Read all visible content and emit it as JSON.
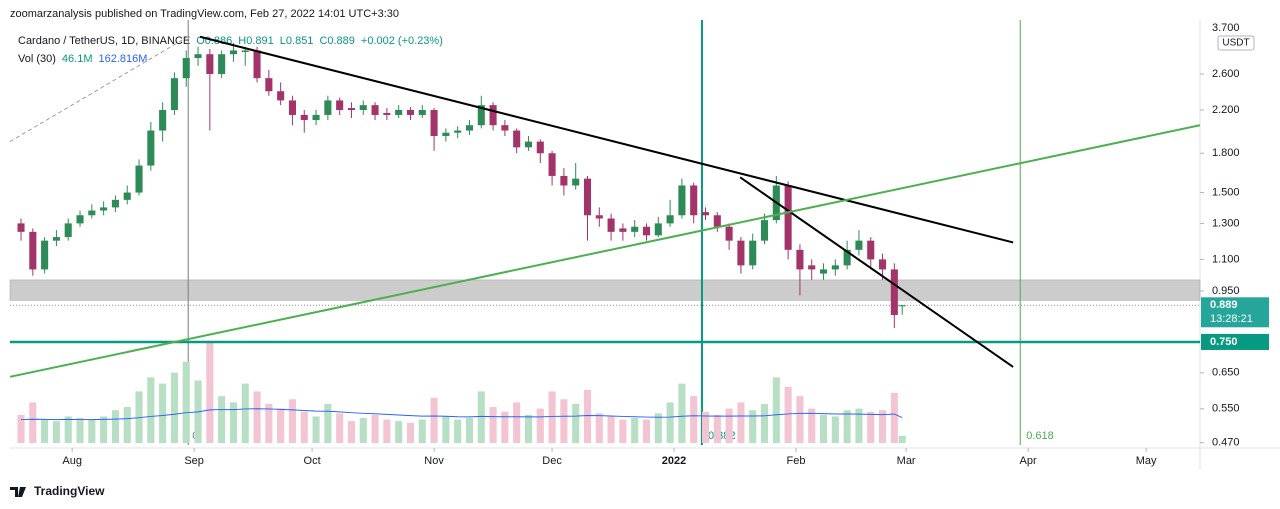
{
  "header": {
    "published": "zoomarzanalysis published on TradingView.com, Feb 27, 2022 14:01 UTC+3:30"
  },
  "legend": {
    "symbol": "Cardano / TetherUS, 1D, BINANCE",
    "open": "O0.886",
    "high": "H0.891",
    "low": "L0.851",
    "close": "C0.889",
    "change": "+0.002 (+0.23%)",
    "vol_name": "Vol (30)",
    "vol": "46.1M",
    "vol_ma": "162.816M"
  },
  "currency": "USDT",
  "footer": "TradingView",
  "chart_data": {
    "type": "candlestick",
    "log_scale": true,
    "up_color": "#2e8b57",
    "down_color": "#a3346a",
    "vol_up_color": "#b7dfc3",
    "vol_down_color": "#f3c4d2",
    "vol_ma_color": "#2962ff",
    "xlim": [
      15.2,
      317.7
    ],
    "xticks": [
      {
        "value": 31,
        "label": "Aug"
      },
      {
        "value": 62,
        "label": "Sep"
      },
      {
        "value": 92,
        "label": "Oct"
      },
      {
        "value": 123,
        "label": "Nov"
      },
      {
        "value": 153,
        "label": "Dec"
      },
      {
        "value": 184,
        "label": "2022"
      },
      {
        "value": 215,
        "label": "Feb"
      },
      {
        "value": 243,
        "label": "Mar"
      },
      {
        "value": 274,
        "label": "Apr"
      },
      {
        "value": 304,
        "label": "May"
      }
    ],
    "ylim": [
      0.465,
      3.34
    ],
    "yticks": [
      {
        "value": 3.7,
        "label": "3.700"
      },
      {
        "value": 2.6,
        "label": "2.600"
      },
      {
        "value": 2.2,
        "label": "2.200"
      },
      {
        "value": 1.8,
        "label": "1.800"
      },
      {
        "value": 1.5,
        "label": "1.500"
      },
      {
        "value": 1.3,
        "label": "1.300"
      },
      {
        "value": 1.1,
        "label": "1.100"
      },
      {
        "value": 0.95,
        "label": "0.950"
      },
      {
        "value": 0.65,
        "label": "0.650"
      },
      {
        "value": 0.55,
        "label": "0.550"
      },
      {
        "value": 0.47,
        "label": "0.470"
      }
    ],
    "x": [
      18,
      21,
      24,
      27,
      30,
      33,
      36,
      39,
      42,
      45,
      48,
      51,
      54,
      57,
      60,
      63,
      66,
      69,
      72,
      75,
      78,
      81,
      84,
      87,
      90,
      93,
      96,
      99,
      102,
      105,
      108,
      111,
      114,
      117,
      120,
      123,
      126,
      129,
      132,
      135,
      138,
      141,
      144,
      147,
      150,
      153,
      156,
      159,
      162,
      165,
      168,
      171,
      174,
      177,
      180,
      183,
      186,
      189,
      192,
      195,
      198,
      201,
      204,
      207,
      210,
      213,
      216,
      219,
      222,
      225,
      228,
      231,
      234,
      237,
      240,
      242
    ],
    "candles": [
      [
        1.3,
        1.33,
        1.2,
        1.25
      ],
      [
        1.25,
        1.27,
        1.02,
        1.05
      ],
      [
        1.05,
        1.22,
        1.03,
        1.2
      ],
      [
        1.2,
        1.26,
        1.17,
        1.22
      ],
      [
        1.22,
        1.33,
        1.2,
        1.3
      ],
      [
        1.3,
        1.38,
        1.28,
        1.35
      ],
      [
        1.35,
        1.42,
        1.33,
        1.38
      ],
      [
        1.38,
        1.44,
        1.35,
        1.4
      ],
      [
        1.4,
        1.48,
        1.37,
        1.45
      ],
      [
        1.45,
        1.55,
        1.42,
        1.5
      ],
      [
        1.5,
        1.75,
        1.48,
        1.7
      ],
      [
        1.7,
        2.08,
        1.66,
        2.0
      ],
      [
        2.0,
        2.28,
        1.9,
        2.2
      ],
      [
        2.2,
        2.62,
        2.15,
        2.55
      ],
      [
        2.55,
        2.9,
        2.45,
        2.8
      ],
      [
        2.8,
        2.95,
        2.7,
        2.85
      ],
      [
        2.85,
        2.92,
        2.0,
        2.6
      ],
      [
        2.6,
        2.9,
        2.55,
        2.85
      ],
      [
        2.85,
        3.0,
        2.75,
        2.9
      ],
      [
        2.88,
        2.95,
        2.7,
        2.9
      ],
      [
        2.9,
        2.95,
        2.5,
        2.55
      ],
      [
        2.55,
        2.65,
        2.35,
        2.4
      ],
      [
        2.4,
        2.5,
        2.25,
        2.3
      ],
      [
        2.3,
        2.35,
        2.05,
        2.15
      ],
      [
        2.15,
        2.2,
        1.98,
        2.1
      ],
      [
        2.1,
        2.2,
        2.05,
        2.15
      ],
      [
        2.15,
        2.35,
        2.1,
        2.3
      ],
      [
        2.3,
        2.33,
        2.15,
        2.2
      ],
      [
        2.22,
        2.28,
        2.12,
        2.2
      ],
      [
        2.2,
        2.3,
        2.15,
        2.25
      ],
      [
        2.25,
        2.28,
        2.1,
        2.15
      ],
      [
        2.17,
        2.22,
        2.1,
        2.15
      ],
      [
        2.15,
        2.25,
        2.12,
        2.2
      ],
      [
        2.2,
        2.23,
        2.1,
        2.15
      ],
      [
        2.15,
        2.25,
        2.12,
        2.2
      ],
      [
        2.2,
        2.22,
        1.82,
        1.95
      ],
      [
        1.95,
        2.02,
        1.9,
        1.98
      ],
      [
        1.98,
        2.04,
        1.93,
        2.0
      ],
      [
        2.0,
        2.1,
        1.96,
        2.05
      ],
      [
        2.05,
        2.35,
        2.02,
        2.25
      ],
      [
        2.25,
        2.28,
        2.0,
        2.05
      ],
      [
        2.05,
        2.1,
        1.95,
        2.0
      ],
      [
        2.0,
        2.02,
        1.8,
        1.85
      ],
      [
        1.85,
        1.95,
        1.82,
        1.9
      ],
      [
        1.9,
        1.92,
        1.72,
        1.8
      ],
      [
        1.8,
        1.82,
        1.55,
        1.62
      ],
      [
        1.62,
        1.68,
        1.48,
        1.55
      ],
      [
        1.55,
        1.72,
        1.52,
        1.6
      ],
      [
        1.6,
        1.62,
        1.2,
        1.35
      ],
      [
        1.35,
        1.4,
        1.28,
        1.33
      ],
      [
        1.33,
        1.36,
        1.2,
        1.25
      ],
      [
        1.27,
        1.3,
        1.2,
        1.25
      ],
      [
        1.25,
        1.32,
        1.22,
        1.28
      ],
      [
        1.28,
        1.3,
        1.2,
        1.23
      ],
      [
        1.23,
        1.34,
        1.22,
        1.3
      ],
      [
        1.3,
        1.45,
        1.28,
        1.35
      ],
      [
        1.35,
        1.6,
        1.33,
        1.55
      ],
      [
        1.55,
        1.57,
        1.3,
        1.35
      ],
      [
        1.37,
        1.4,
        1.32,
        1.35
      ],
      [
        1.35,
        1.37,
        1.25,
        1.28
      ],
      [
        1.28,
        1.3,
        1.15,
        1.2
      ],
      [
        1.2,
        1.22,
        1.03,
        1.07
      ],
      [
        1.07,
        1.24,
        1.05,
        1.2
      ],
      [
        1.2,
        1.36,
        1.18,
        1.32
      ],
      [
        1.32,
        1.62,
        1.3,
        1.55
      ],
      [
        1.55,
        1.58,
        1.1,
        1.15
      ],
      [
        1.15,
        1.18,
        0.93,
        1.05
      ],
      [
        1.07,
        1.1,
        1.0,
        1.05
      ],
      [
        1.03,
        1.08,
        1.0,
        1.05
      ],
      [
        1.05,
        1.1,
        1.02,
        1.07
      ],
      [
        1.07,
        1.2,
        1.05,
        1.15
      ],
      [
        1.15,
        1.26,
        1.12,
        1.2
      ],
      [
        1.2,
        1.22,
        1.05,
        1.1
      ],
      [
        1.1,
        1.13,
        1.0,
        1.05
      ],
      [
        1.05,
        1.08,
        0.8,
        0.85
      ],
      [
        0.886,
        0.891,
        0.851,
        0.889
      ]
    ],
    "volume": [
      180,
      260,
      150,
      140,
      170,
      160,
      150,
      170,
      210,
      230,
      330,
      420,
      380,
      450,
      520,
      400,
      640,
      300,
      260,
      380,
      330,
      250,
      220,
      280,
      200,
      170,
      250,
      190,
      140,
      160,
      180,
      150,
      140,
      130,
      150,
      290,
      170,
      150,
      160,
      330,
      230,
      200,
      260,
      180,
      220,
      330,
      280,
      250,
      340,
      190,
      170,
      150,
      160,
      150,
      190,
      260,
      380,
      300,
      200,
      180,
      220,
      260,
      210,
      250,
      420,
      360,
      300,
      220,
      180,
      170,
      210,
      220,
      200,
      210,
      320,
      46.1
    ],
    "vol_ma": [
      150,
      152,
      151,
      150,
      151,
      150,
      150,
      151,
      153,
      156,
      162,
      170,
      176,
      184,
      194,
      199,
      212,
      214,
      214,
      218,
      219,
      218,
      215,
      212,
      208,
      204,
      203,
      199,
      194,
      190,
      187,
      183,
      179,
      175,
      172,
      173,
      171,
      168,
      167,
      170,
      169,
      168,
      168,
      167,
      167,
      170,
      171,
      172,
      176,
      175,
      173,
      170,
      168,
      166,
      165,
      166,
      171,
      174,
      173,
      172,
      172,
      173,
      173,
      174,
      181,
      186,
      190,
      190,
      188,
      186,
      186,
      185,
      183,
      182,
      185,
      162.816
    ],
    "zone": [
      0.91,
      1.0
    ],
    "zone_color": "#cccccc",
    "trend_lines": [
      {
        "color": "#9e9e9e",
        "dashed": true,
        "points": [
          [
            15.2,
            1.9
          ],
          [
            61,
            3.11
          ]
        ]
      },
      {
        "color": "#000000",
        "points": [
          [
            63.5,
            3.09
          ],
          [
            270.2,
            1.19
          ]
        ]
      },
      {
        "color": "#000000",
        "points": [
          [
            200.8,
            1.61
          ],
          [
            270.2,
            0.668
          ]
        ]
      },
      {
        "color": "#4caf50",
        "points": [
          [
            15.2,
            0.638
          ],
          [
            317.7,
            2.05
          ]
        ]
      }
    ],
    "fib_time": [
      {
        "x": 60.5,
        "level": 0,
        "color": "#787b86"
      },
      {
        "x": 191.1,
        "level": 0.382,
        "color": "#089981"
      },
      {
        "x": 272,
        "level": 0.618,
        "color": "#4caf50"
      }
    ],
    "horizontal_line": {
      "value": 0.75,
      "label": "0.750",
      "color": "#089981"
    },
    "last_price": 0.889,
    "last_color": "#26a69a",
    "countdown": "13:28:21"
  }
}
